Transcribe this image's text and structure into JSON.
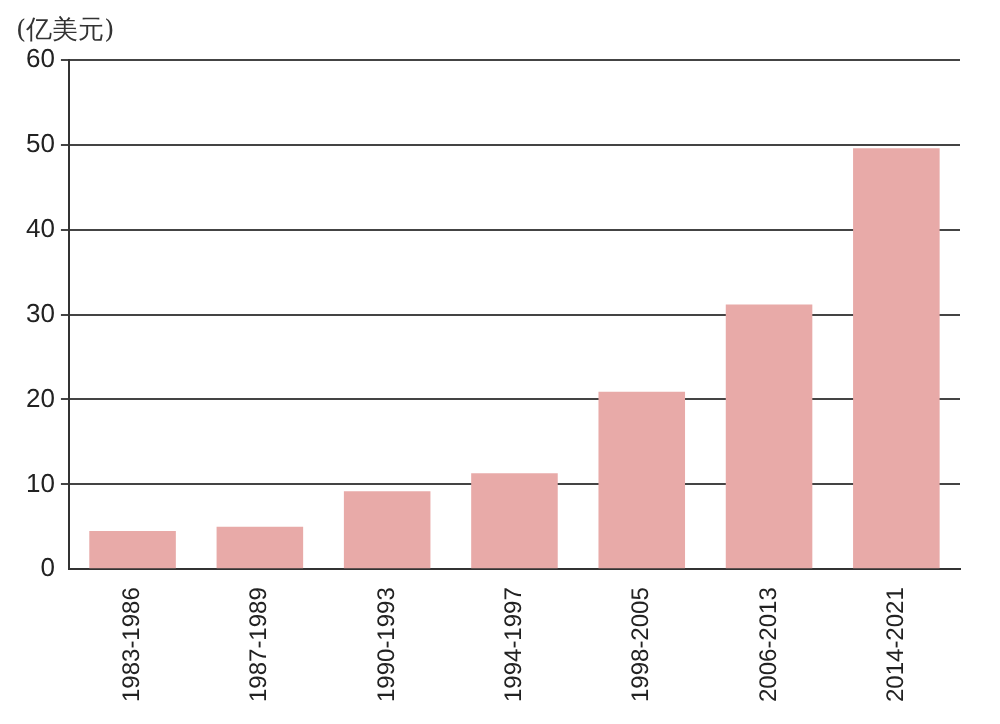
{
  "chart_data": {
    "type": "bar",
    "ylabel": "(亿美元)",
    "categories": [
      "1983-1986",
      "1987-1989",
      "1990-1993",
      "1994-1997",
      "1998-2005",
      "2006-2013",
      "2014-2021"
    ],
    "values": [
      4.5,
      5.0,
      9.2,
      11.3,
      20.9,
      31.2,
      49.6
    ],
    "color": "#e8aaa8",
    "ylim": [
      0,
      60
    ],
    "yticks": [
      0,
      10,
      20,
      30,
      40,
      50,
      60
    ],
    "grid": "y",
    "legend": false
  }
}
